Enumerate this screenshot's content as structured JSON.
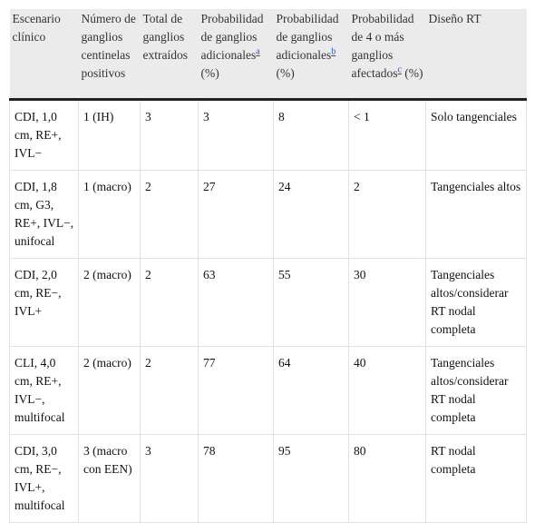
{
  "table": {
    "header": [
      {
        "text": "Escenario clínico"
      },
      {
        "text": "Número de ganglios centinelas positivos"
      },
      {
        "text": "Total de ganglios extraídos"
      },
      {
        "text": "Probabilidad de ganglios adicionales",
        "note": "a",
        "suffix": "(%)"
      },
      {
        "text": "Probabilidad de ganglios adicionales",
        "note": "b",
        "suffix": "(%)"
      },
      {
        "text": "Probabilidad de 4 o más ganglios afectados",
        "note": "c",
        "suffix": "(%)"
      },
      {
        "text": "Diseño RT"
      }
    ],
    "rows": [
      [
        "CDI, 1,0 cm, RE+, IVL−",
        "1 (IH)",
        "3",
        "3",
        "8",
        "< 1",
        "Solo tangenciales"
      ],
      [
        "CDI, 1,8 cm, G3, RE+, IVL−, unifocal",
        "1 (macro)",
        "2",
        "27",
        "24",
        "2",
        "Tangenciales altos"
      ],
      [
        "CDI, 2,0 cm, RE−, IVL+",
        "2 (macro)",
        "2",
        "63",
        "55",
        "30",
        "Tangenciales altos/considerar RT nodal completa"
      ],
      [
        "CLI, 4,0 cm, RE+, IVL−, multifocal",
        "2 (macro)",
        "2",
        "77",
        "64",
        "40",
        "Tangenciales altos/considerar RT nodal completa"
      ],
      [
        "CDI, 3,0 cm, RE−, IVL+, multifocal",
        "3 (macro con EEN)",
        "3",
        "78",
        "95",
        "80",
        "RT nodal completa"
      ]
    ]
  }
}
